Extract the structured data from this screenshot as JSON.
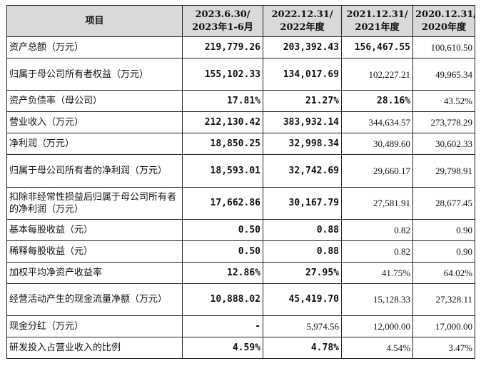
{
  "table": {
    "headers": [
      {
        "line1": "项目",
        "line2": ""
      },
      {
        "line1": "2023.6.30/",
        "line2": "2023年1-6月"
      },
      {
        "line1": "2022.12.31/",
        "line2": "2022年度"
      },
      {
        "line1": "2021.12.31/",
        "line2": "2021年度"
      },
      {
        "line1": "2020.12.31/",
        "line2": "2020年度"
      }
    ],
    "rows": [
      {
        "item": "资产总额（万元）",
        "v2023": "219,779.26",
        "v2022": "203,392.43",
        "v2021": "156,467.55",
        "v2020": "100,610.50"
      },
      {
        "item": "归属于母公司所有者权益（万元）",
        "v2023": "155,102.33",
        "v2022": "134,017.69",
        "v2021": "102,227.21",
        "v2020": "49,965.34"
      },
      {
        "item": "资产负债率（母公司）",
        "v2023": "17.81%",
        "v2022": "21.27%",
        "v2021": "28.16%",
        "v2020": "43.52%"
      },
      {
        "item": "营业收入（万元）",
        "v2023": "212,130.42",
        "v2022": "383,932.14",
        "v2021": "344,634.57",
        "v2020": "273,778.29"
      },
      {
        "item": "净利润（万元）",
        "v2023": "18,850.25",
        "v2022": "32,998.34",
        "v2021": "30,489.60",
        "v2020": "30,602.33"
      },
      {
        "item": "归属于母公司所有者的净利润（万元）",
        "v2023": "18,593.01",
        "v2022": "32,742.69",
        "v2021": "29,660.17",
        "v2020": "29,798.91"
      },
      {
        "item": "扣除非经常性损益后归属于母公司所有者的净利润（万元）",
        "v2023": "17,662.86",
        "v2022": "30,167.79",
        "v2021": "27,581.91",
        "v2020": "28,677.45"
      },
      {
        "item": "基本每股收益（元）",
        "v2023": "0.50",
        "v2022": "0.88",
        "v2021": "0.82",
        "v2020": "0.90"
      },
      {
        "item": "稀释每股收益（元）",
        "v2023": "0.50",
        "v2022": "0.88",
        "v2021": "0.82",
        "v2020": "0.90"
      },
      {
        "item": "加权平均净资产收益率",
        "v2023": "12.86%",
        "v2022": "27.95%",
        "v2021": "41.75%",
        "v2020": "64.02%"
      },
      {
        "item": "经营活动产生的现金流量净额（万元）",
        "v2023": "10,888.02",
        "v2022": "45,419.70",
        "v2021": "15,128.33",
        "v2020": "27,328.11"
      },
      {
        "item": "现金分红（万元）",
        "v2023": "-",
        "v2022": "5,974.56",
        "v2021": "12,000.00",
        "v2020": "17,000.00"
      },
      {
        "item": "研发投入占营业收入的比例",
        "v2023": "4.59%",
        "v2022": "4.78%",
        "v2021": "4.54%",
        "v2020": "3.47%"
      }
    ]
  }
}
